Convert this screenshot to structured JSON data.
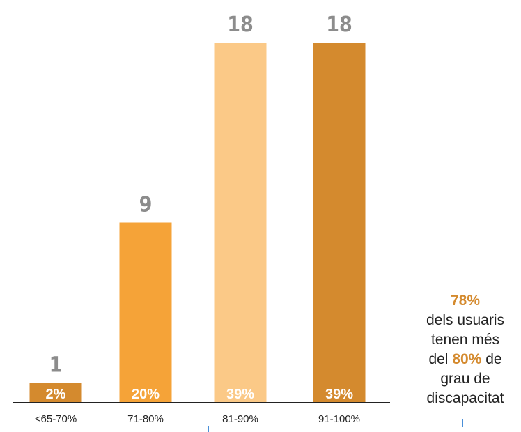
{
  "chart_data": {
    "type": "bar",
    "categories": [
      "<65-70%",
      "71-80%",
      "81-90%",
      "91-100%"
    ],
    "values": [
      1,
      9,
      18,
      18
    ],
    "percent_labels": [
      "2%",
      "20%",
      "39%",
      "39%"
    ],
    "colors": [
      "#d48a2e",
      "#f5a338",
      "#fbc987",
      "#d48a2e"
    ],
    "title": "",
    "xlabel": "",
    "ylabel": "",
    "ylim": [
      0,
      18
    ],
    "grid": false,
    "legend": "none"
  },
  "annotation": {
    "headline_pct": "78%",
    "line1": "dels usuaris",
    "line2": "tenen més",
    "line3_prefix": "del",
    "line3_pct": "80%",
    "line3_suffix": "de",
    "line4": "grau de",
    "line5": "discapacitat"
  },
  "colors": {
    "accent": "#d48a2e",
    "value_label": "#8c8c8c",
    "axis": "#222222"
  }
}
